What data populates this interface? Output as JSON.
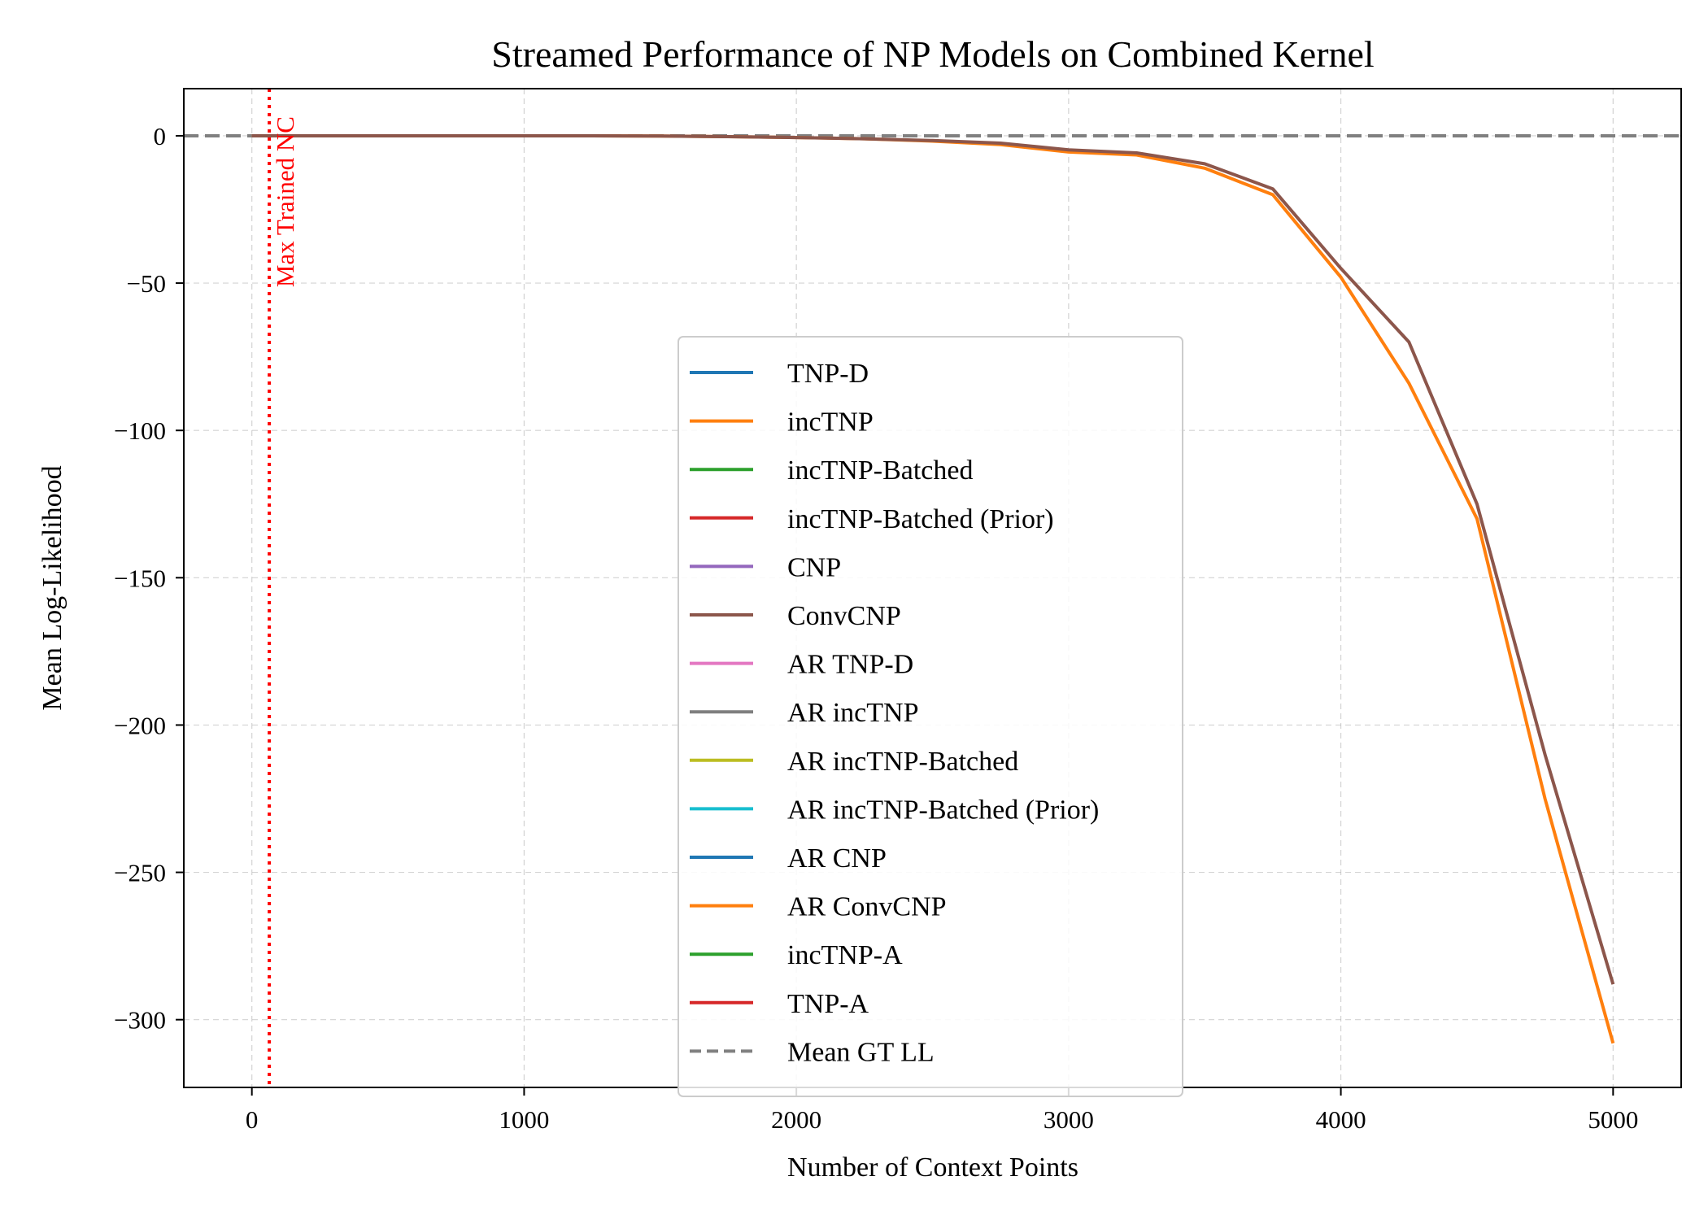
{
  "chart_data": {
    "type": "line",
    "title": "Streamed Performance of NP Models on Combined Kernel",
    "xlabel": "Number of Context Points",
    "ylabel": "Mean Log-Likelihood",
    "xlim": [
      -250,
      5250
    ],
    "ylim": [
      -323,
      16
    ],
    "xticks": [
      0,
      1000,
      2000,
      3000,
      4000,
      5000
    ],
    "yticks": [
      0,
      -50,
      -100,
      -150,
      -200,
      -250,
      -300
    ],
    "xtick_labels": [
      "0",
      "1000",
      "2000",
      "3000",
      "4000",
      "5000"
    ],
    "ytick_labels": [
      "0",
      "−50",
      "−100",
      "−150",
      "−200",
      "−250",
      "−300"
    ],
    "grid": true,
    "legend_position": "center",
    "annotation": {
      "text": "Max Trained NC",
      "x": 64,
      "color": "#ff0000"
    },
    "series": [
      {
        "name": "TNP-D",
        "color": "#1f77b4",
        "style": "solid",
        "x": [],
        "y": []
      },
      {
        "name": "incTNP",
        "color": "#ff7f0e",
        "style": "solid",
        "x": [
          0,
          250,
          500,
          750,
          1000,
          1250,
          1500,
          1750,
          2000,
          2250,
          2500,
          2750,
          3000,
          3250,
          3500,
          3750,
          4000,
          4250,
          4500,
          4750,
          5000
        ],
        "y": [
          0,
          0,
          0,
          0,
          0,
          0,
          -0.1,
          -0.3,
          -0.6,
          -1,
          -1.8,
          -3,
          -5.5,
          -6.5,
          -11,
          -20,
          -48,
          -84,
          -130,
          -225,
          -308
        ]
      },
      {
        "name": "incTNP-Batched",
        "color": "#2ca02c",
        "style": "solid",
        "x": [],
        "y": []
      },
      {
        "name": "incTNP-Batched (Prior)",
        "color": "#d62728",
        "style": "solid",
        "x": [],
        "y": []
      },
      {
        "name": "CNP",
        "color": "#9467bd",
        "style": "solid",
        "x": [],
        "y": []
      },
      {
        "name": "ConvCNP",
        "color": "#8c564b",
        "style": "solid",
        "x": [
          0,
          250,
          500,
          750,
          1000,
          1250,
          1500,
          1750,
          2000,
          2250,
          2500,
          2750,
          3000,
          3250,
          3500,
          3750,
          4000,
          4250,
          4500,
          4750,
          5000
        ],
        "y": [
          0,
          0,
          0,
          0,
          0,
          0,
          -0.1,
          -0.3,
          -0.6,
          -1,
          -1.6,
          -2.5,
          -4.8,
          -5.8,
          -9.5,
          -18,
          -45,
          -70,
          -125,
          -210,
          -288
        ]
      },
      {
        "name": " AR TNP-D",
        "color": "#e377c2",
        "style": "solid",
        "x": [],
        "y": []
      },
      {
        "name": "AR incTNP",
        "color": "#7f7f7f",
        "style": "solid",
        "x": [],
        "y": []
      },
      {
        "name": "AR incTNP-Batched",
        "color": "#bcbd22",
        "style": "solid",
        "x": [],
        "y": []
      },
      {
        "name": "AR incTNP-Batched (Prior)",
        "color": "#17becf",
        "style": "solid",
        "x": [],
        "y": []
      },
      {
        "name": "AR CNP",
        "color": "#1f77b4",
        "style": "solid",
        "x": [],
        "y": []
      },
      {
        "name": "AR ConvCNP",
        "color": "#ff7f0e",
        "style": "solid",
        "x": [],
        "y": []
      },
      {
        "name": "incTNP-A",
        "color": "#2ca02c",
        "style": "solid",
        "x": [],
        "y": []
      },
      {
        "name": "TNP-A",
        "color": "#d62728",
        "style": "solid",
        "x": [],
        "y": []
      },
      {
        "name": "Mean GT LL",
        "color": "#808080",
        "style": "dashed",
        "x": [
          -250,
          5250
        ],
        "y": [
          0,
          0
        ]
      }
    ]
  }
}
